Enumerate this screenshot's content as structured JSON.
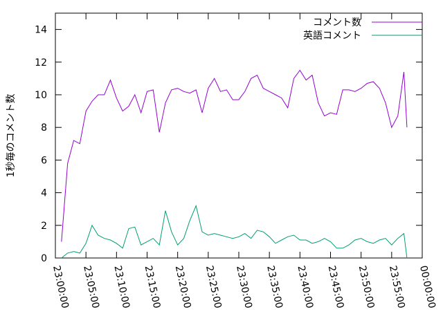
{
  "chart_data": {
    "type": "line",
    "ylabel": "1秒毎のコメント数",
    "x": [
      "23:01:00",
      "23:02:00",
      "23:03:00",
      "23:04:00",
      "23:05:00",
      "23:06:00",
      "23:07:00",
      "23:08:00",
      "23:09:00",
      "23:10:00",
      "23:11:00",
      "23:12:00",
      "23:13:00",
      "23:14:00",
      "23:15:00",
      "23:16:00",
      "23:17:00",
      "23:18:00",
      "23:19:00",
      "23:20:00",
      "23:21:00",
      "23:22:00",
      "23:23:00",
      "23:24:00",
      "23:25:00",
      "23:26:00",
      "23:27:00",
      "23:28:00",
      "23:29:00",
      "23:30:00",
      "23:31:00",
      "23:32:00",
      "23:33:00",
      "23:34:00",
      "23:35:00",
      "23:36:00",
      "23:37:00",
      "23:38:00",
      "23:39:00",
      "23:40:00",
      "23:41:00",
      "23:42:00",
      "23:43:00",
      "23:44:00",
      "23:45:00",
      "23:46:00",
      "23:47:00",
      "23:48:00",
      "23:49:00",
      "23:50:00",
      "23:51:00",
      "23:52:00",
      "23:53:00",
      "23:54:00",
      "23:55:00",
      "23:56:00",
      "23:57:00",
      "23:57:30"
    ],
    "series": [
      {
        "name": "コメント数",
        "color": "#9400d3",
        "values": [
          1.0,
          5.8,
          7.2,
          7.0,
          9.0,
          9.6,
          10.0,
          10.0,
          10.9,
          9.8,
          9.0,
          9.3,
          10.0,
          8.9,
          10.2,
          10.3,
          7.7,
          9.5,
          10.3,
          10.4,
          10.2,
          10.1,
          10.3,
          8.9,
          10.4,
          11.0,
          10.2,
          10.3,
          9.7,
          9.7,
          10.2,
          11.0,
          11.2,
          10.4,
          10.2,
          10.0,
          9.8,
          9.2,
          11.0,
          11.5,
          10.9,
          11.2,
          9.5,
          8.7,
          8.9,
          8.8,
          10.3,
          10.3,
          10.2,
          10.4,
          10.7,
          10.8,
          10.4,
          9.5,
          8.0,
          8.7,
          11.4,
          8.0
        ]
      },
      {
        "name": "英語コメント",
        "color": "#009e73",
        "values": [
          0.0,
          0.3,
          0.4,
          0.3,
          0.9,
          2.0,
          1.4,
          1.2,
          1.1,
          0.9,
          0.6,
          1.8,
          1.9,
          0.8,
          1.0,
          1.2,
          0.8,
          2.9,
          1.6,
          0.8,
          1.2,
          2.3,
          3.2,
          1.6,
          1.4,
          1.5,
          1.4,
          1.3,
          1.2,
          1.3,
          1.5,
          1.2,
          1.7,
          1.6,
          1.3,
          0.9,
          1.1,
          1.3,
          1.4,
          1.1,
          1.1,
          0.9,
          1.0,
          1.2,
          1.0,
          0.6,
          0.6,
          0.8,
          1.1,
          1.2,
          1.0,
          0.9,
          1.1,
          1.2,
          0.8,
          1.2,
          1.5,
          0.0
        ]
      }
    ],
    "xlim": [
      "23:00:00",
      "00:00:00"
    ],
    "xticks": [
      "23:00:00",
      "23:05:00",
      "23:10:00",
      "23:15:00",
      "23:20:00",
      "23:25:00",
      "23:30:00",
      "23:35:00",
      "23:40:00",
      "23:45:00",
      "23:50:00",
      "23:55:00",
      "00:00:00"
    ],
    "ylim": [
      0,
      15
    ],
    "yticks": [
      0,
      2,
      4,
      6,
      8,
      10,
      12,
      14
    ],
    "grid": false,
    "legend": "top-right"
  }
}
